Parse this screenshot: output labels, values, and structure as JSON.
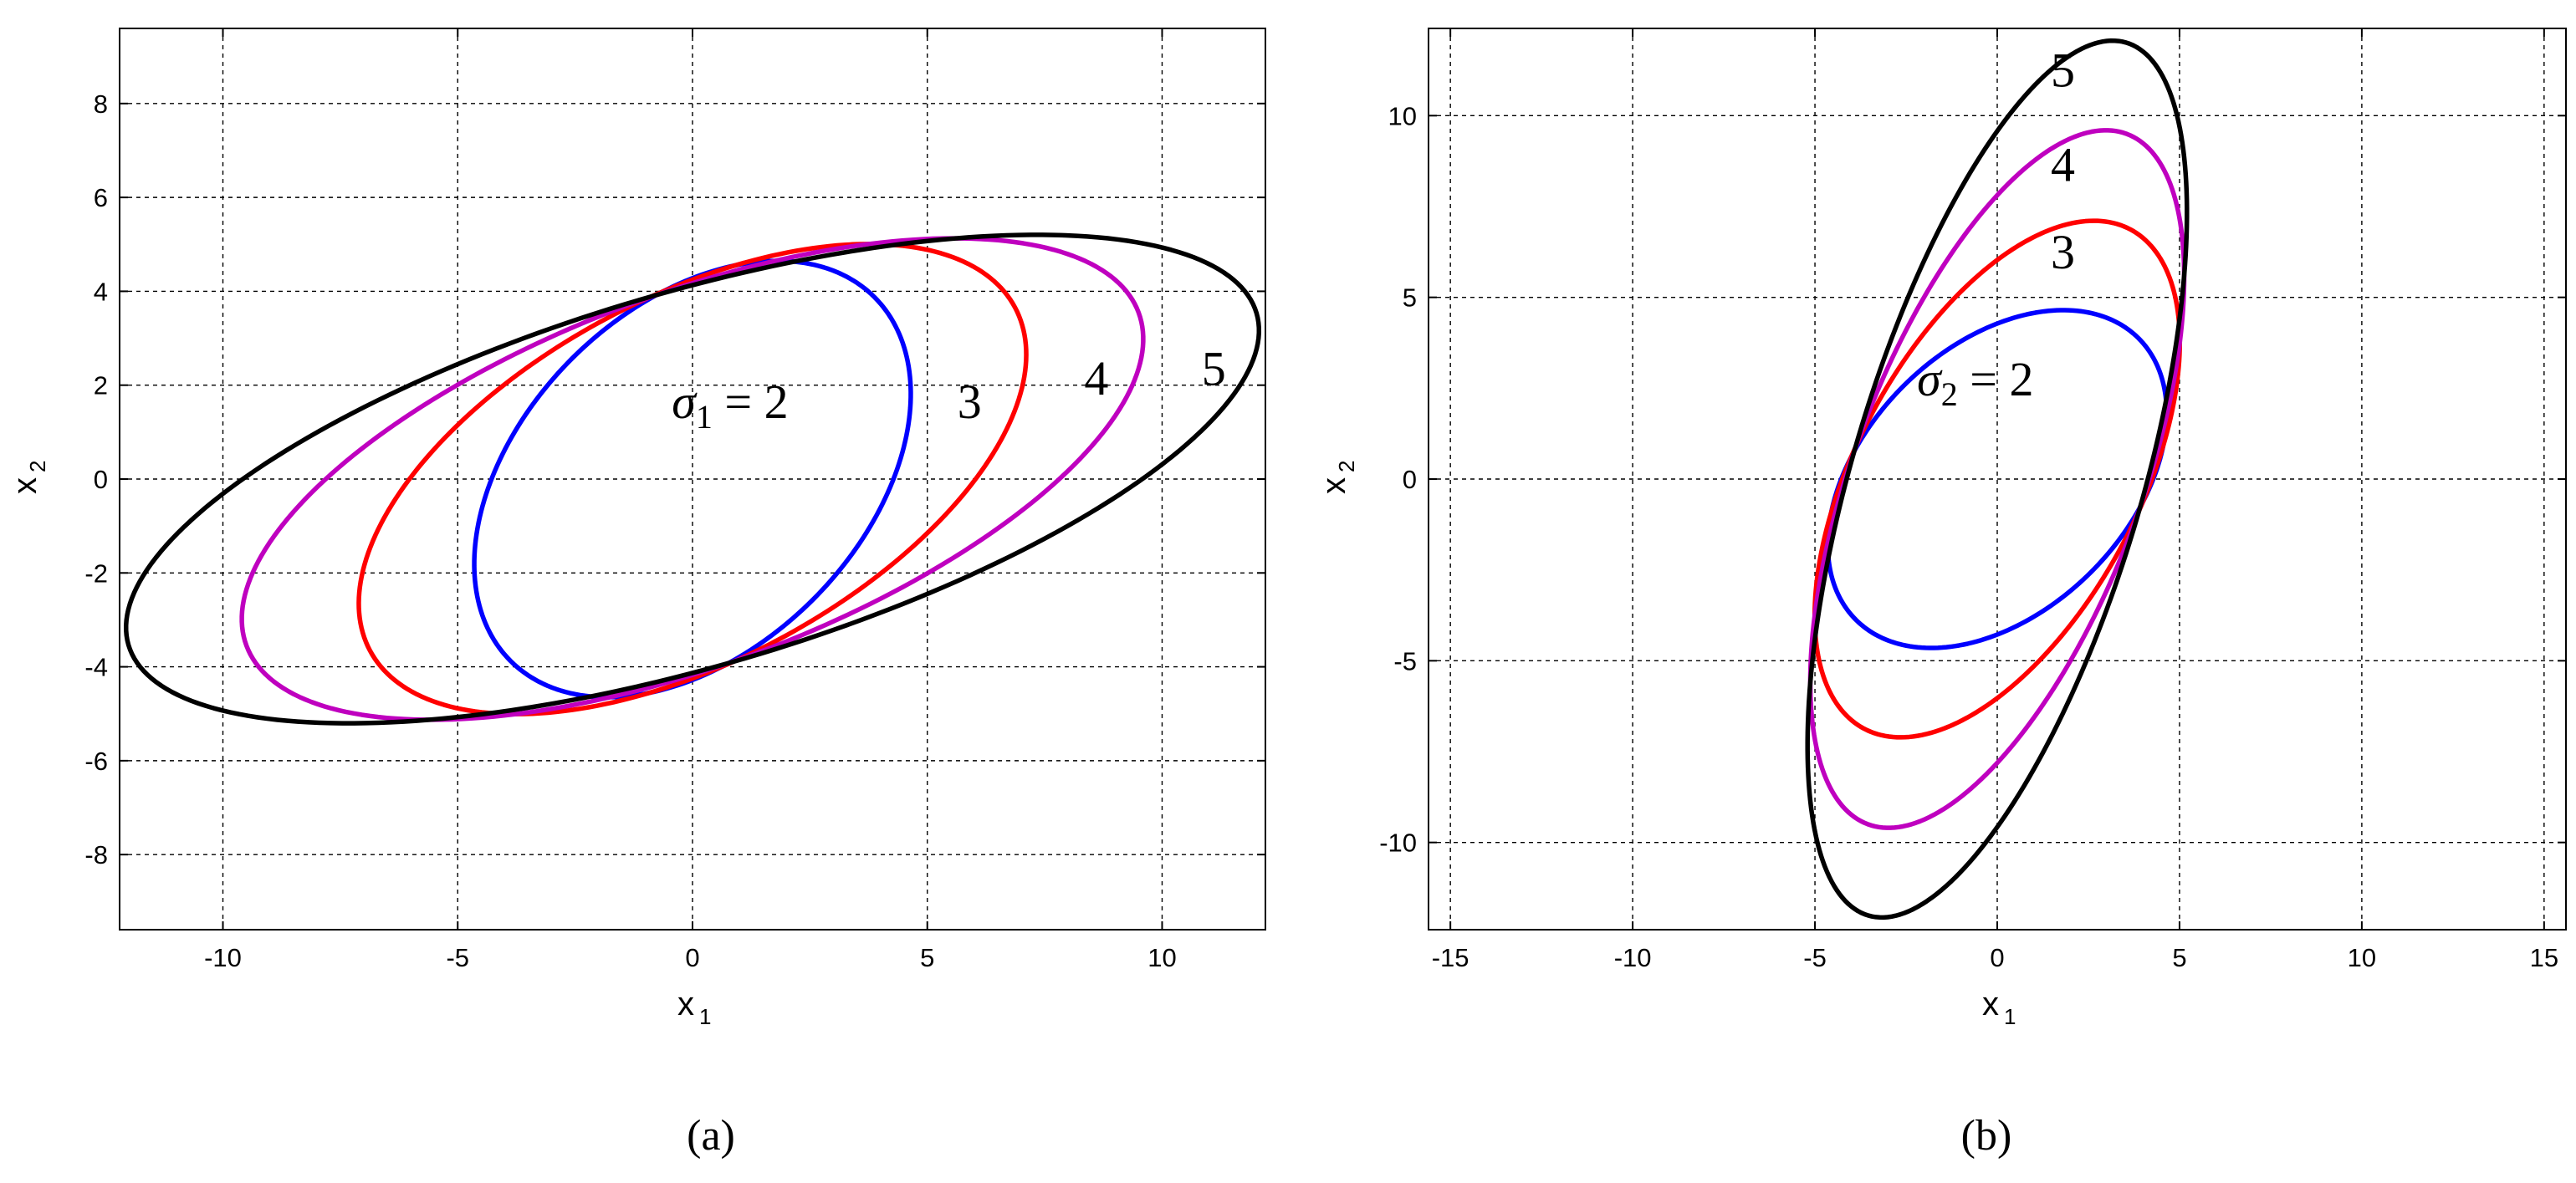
{
  "chart_data": [
    {
      "type": "line",
      "panel_label": "(a)",
      "xlabel": "x",
      "xlabel_sub": "1",
      "ylabel": "x",
      "ylabel_sub": "2",
      "xlim": [
        -12.2,
        12.2
      ],
      "ylim": [
        -9.6,
        9.6
      ],
      "xticks": [
        -10,
        -5,
        0,
        5,
        10
      ],
      "yticks": [
        -8,
        -6,
        -4,
        -2,
        0,
        2,
        4,
        6,
        8
      ],
      "xtick_labels": [
        "-10",
        "-5",
        "0",
        "5",
        "10"
      ],
      "ytick_labels": [
        "-8",
        "-6",
        "-4",
        "-2",
        "0",
        "2",
        "4",
        "6",
        "8"
      ],
      "grid": true,
      "series": [
        {
          "sigma": 2,
          "color": "#0000ff",
          "cx": 0.0,
          "cy": 0.0,
          "semi_major": 5.48,
          "semi_minor": 3.63,
          "angle_deg": 45.0
        },
        {
          "sigma": 3,
          "color": "#ff0000",
          "cx": 0.0,
          "cy": 0.0,
          "semi_major": 7.78,
          "semi_minor": 3.88,
          "angle_deg": 28.0
        },
        {
          "sigma": 4,
          "color": "#bf00bf",
          "cx": 0.0,
          "cy": 0.0,
          "semi_major": 10.14,
          "semi_minor": 3.95,
          "angle_deg": 20.5
        },
        {
          "sigma": 5,
          "color": "#000000",
          "cx": 0.0,
          "cy": 0.0,
          "semi_major": 12.52,
          "semi_minor": 3.98,
          "angle_deg": 16.4
        }
      ],
      "annotations": [
        {
          "greek": "σ",
          "sub": "1",
          "rest": " = 2",
          "x": 0.8,
          "y": 1.3
        },
        {
          "text": "3",
          "x": 5.9,
          "y": 1.3
        },
        {
          "text": "4",
          "x": 8.6,
          "y": 1.8
        },
        {
          "text": "5",
          "x": 11.1,
          "y": 2.0
        }
      ]
    },
    {
      "type": "line",
      "panel_label": "(b)",
      "xlabel": "x",
      "xlabel_sub": "1",
      "ylabel": "x",
      "ylabel_sub": "2",
      "xlim": [
        -15.6,
        15.6
      ],
      "ylim": [
        -12.4,
        12.4
      ],
      "xticks": [
        -15,
        -10,
        -5,
        0,
        5,
        10,
        15
      ],
      "yticks": [
        -10,
        -5,
        0,
        5,
        10
      ],
      "xtick_labels": [
        "-15",
        "-10",
        "-5",
        "0",
        "5",
        "10",
        "15"
      ],
      "ytick_labels": [
        "-10",
        "-5",
        "0",
        "5",
        "10"
      ],
      "grid": true,
      "series": [
        {
          "sigma": 2,
          "color": "#0000ff",
          "cx": 0.0,
          "cy": 0.0,
          "semi_major": 5.48,
          "semi_minor": 3.63,
          "angle_deg": 45.0
        },
        {
          "sigma": 3,
          "color": "#ff0000",
          "cx": 0.0,
          "cy": 0.0,
          "semi_major": 7.78,
          "semi_minor": 3.88,
          "angle_deg": 62.0
        },
        {
          "sigma": 4,
          "color": "#bf00bf",
          "cx": 0.0,
          "cy": 0.0,
          "semi_major": 10.14,
          "semi_minor": 3.95,
          "angle_deg": 69.5
        },
        {
          "sigma": 5,
          "color": "#000000",
          "cx": 0.0,
          "cy": 0.0,
          "semi_major": 12.52,
          "semi_minor": 3.98,
          "angle_deg": 73.6
        }
      ],
      "annotations": [
        {
          "greek": "σ",
          "sub": "2",
          "rest": " = 2",
          "x": -0.6,
          "y": 2.3
        },
        {
          "text": "3",
          "x": 1.8,
          "y": 5.8
        },
        {
          "text": "4",
          "x": 1.8,
          "y": 8.2
        },
        {
          "text": "5",
          "x": 1.8,
          "y": 10.8
        }
      ]
    }
  ]
}
